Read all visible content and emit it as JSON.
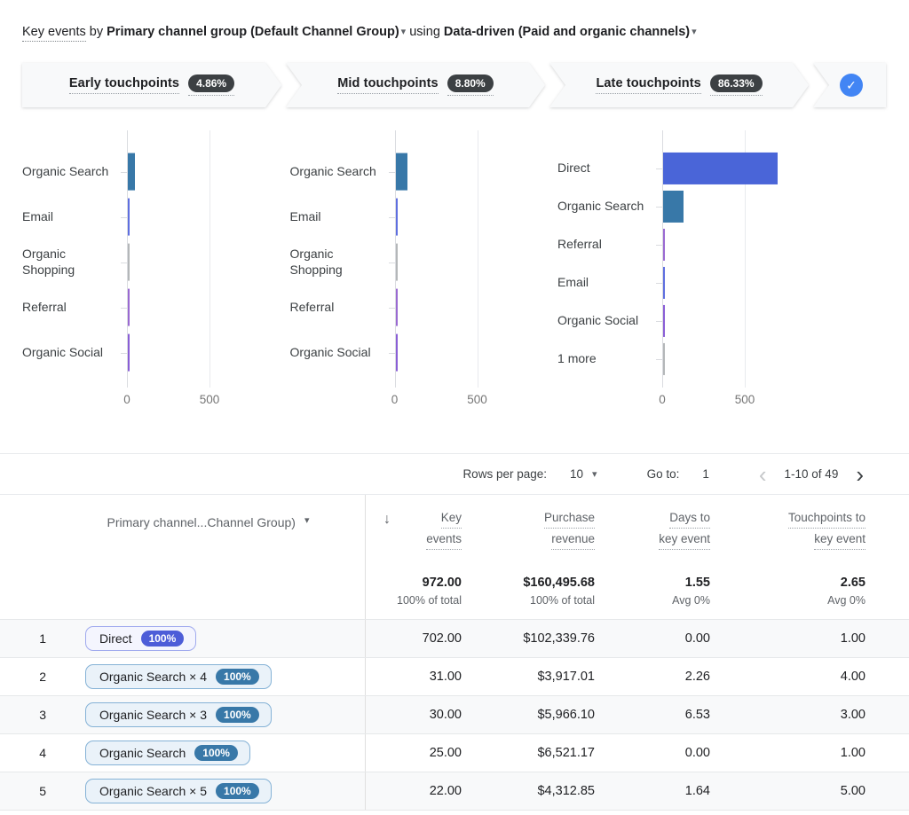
{
  "colors": {
    "google_blue": "#4285f4",
    "direct_bar": "#4a65d8",
    "organic_search_bar": "#3878a8",
    "email_bar": "#5f6fe0",
    "organic_shopping_bar": "#b4b7b9",
    "referral_bar": "#9a6ad2",
    "organic_social_bar": "#8a5fd6",
    "more_bar": "#b4b7b9"
  },
  "header": {
    "metric": "Key events",
    "by": "by",
    "dimension": "Primary channel group (Default Channel Group)",
    "using": "using",
    "model": "Data-driven (Paid and organic channels)",
    "caret": "▾"
  },
  "funnel": {
    "stages": [
      {
        "label": "Early touchpoints",
        "value": "4.86%"
      },
      {
        "label": "Mid touchpoints",
        "value": "8.80%"
      },
      {
        "label": "Late touchpoints",
        "value": "86.33%"
      }
    ],
    "check_glyph": "✓"
  },
  "chart_data": [
    {
      "type": "bar",
      "orientation": "horizontal",
      "title": "Early touchpoints",
      "categories": [
        "Organic Search",
        "Email",
        "Organic Shopping",
        "Referral",
        "Organic Social"
      ],
      "values": [
        42,
        8,
        5,
        8,
        8
      ],
      "colors": [
        "#3878a8",
        "#5f6fe0",
        "#b4b7b9",
        "#9a6ad2",
        "#8a5fd6"
      ],
      "xticks": [
        0,
        500
      ],
      "xlim": [
        0,
        750
      ],
      "grid": true,
      "legend": false
    },
    {
      "type": "bar",
      "orientation": "horizontal",
      "title": "Mid touchpoints",
      "categories": [
        "Organic Search",
        "Email",
        "Organic Shopping",
        "Referral",
        "Organic Social"
      ],
      "values": [
        75,
        10,
        5,
        10,
        10
      ],
      "colors": [
        "#3878a8",
        "#5f6fe0",
        "#b4b7b9",
        "#9a6ad2",
        "#8a5fd6"
      ],
      "xticks": [
        0,
        500
      ],
      "xlim": [
        0,
        750
      ],
      "grid": true,
      "legend": false
    },
    {
      "type": "bar",
      "orientation": "horizontal",
      "title": "Late touchpoints",
      "categories": [
        "Direct",
        "Organic Search",
        "Referral",
        "Email",
        "Organic Social",
        "1 more"
      ],
      "values": [
        695,
        123,
        6,
        7,
        7,
        3
      ],
      "colors": [
        "#4a65d8",
        "#3878a8",
        "#9a6ad2",
        "#5f6fe0",
        "#8a5fd6",
        "#b4b7b9"
      ],
      "xticks": [
        0,
        500
      ],
      "xlim": [
        0,
        1100
      ],
      "grid": true,
      "legend": false
    }
  ],
  "pagination": {
    "rows_per_page_label": "Rows per page:",
    "rows_per_page_value": "10",
    "goto_label": "Go to:",
    "goto_value": "1",
    "range": "1-10 of 49",
    "prev_glyph": "‹",
    "next_glyph": "›"
  },
  "table": {
    "dimension_header": "Primary channel...Channel Group)",
    "dimension_caret": "▾",
    "sort_icon": "↓",
    "columns": [
      {
        "line1": "Key",
        "line2": "events"
      },
      {
        "line1": "Purchase",
        "line2": "revenue"
      },
      {
        "line1": "Days to",
        "line2": "key event"
      },
      {
        "line1": "Touchpoints to",
        "line2": "key event"
      }
    ],
    "totals": [
      {
        "value": "972.00",
        "sub": "100% of total"
      },
      {
        "value": "$160,495.68",
        "sub": "100% of total"
      },
      {
        "value": "1.55",
        "sub": "Avg 0%"
      },
      {
        "value": "2.65",
        "sub": "Avg 0%"
      }
    ],
    "rows": [
      {
        "index": "1",
        "chip": {
          "label": "Direct",
          "badge": "100%",
          "theme": "indigo"
        },
        "values": [
          "702.00",
          "$102,339.76",
          "0.00",
          "1.00"
        ]
      },
      {
        "index": "2",
        "chip": {
          "label": "Organic Search × 4",
          "badge": "100%",
          "theme": "blue"
        },
        "values": [
          "31.00",
          "$3,917.01",
          "2.26",
          "4.00"
        ]
      },
      {
        "index": "3",
        "chip": {
          "label": "Organic Search × 3",
          "badge": "100%",
          "theme": "blue"
        },
        "values": [
          "30.00",
          "$5,966.10",
          "6.53",
          "3.00"
        ]
      },
      {
        "index": "4",
        "chip": {
          "label": "Organic Search",
          "badge": "100%",
          "theme": "blue"
        },
        "values": [
          "25.00",
          "$6,521.17",
          "0.00",
          "1.00"
        ]
      },
      {
        "index": "5",
        "chip": {
          "label": "Organic Search × 5",
          "badge": "100%",
          "theme": "blue"
        },
        "values": [
          "22.00",
          "$4,312.85",
          "1.64",
          "5.00"
        ]
      }
    ]
  }
}
